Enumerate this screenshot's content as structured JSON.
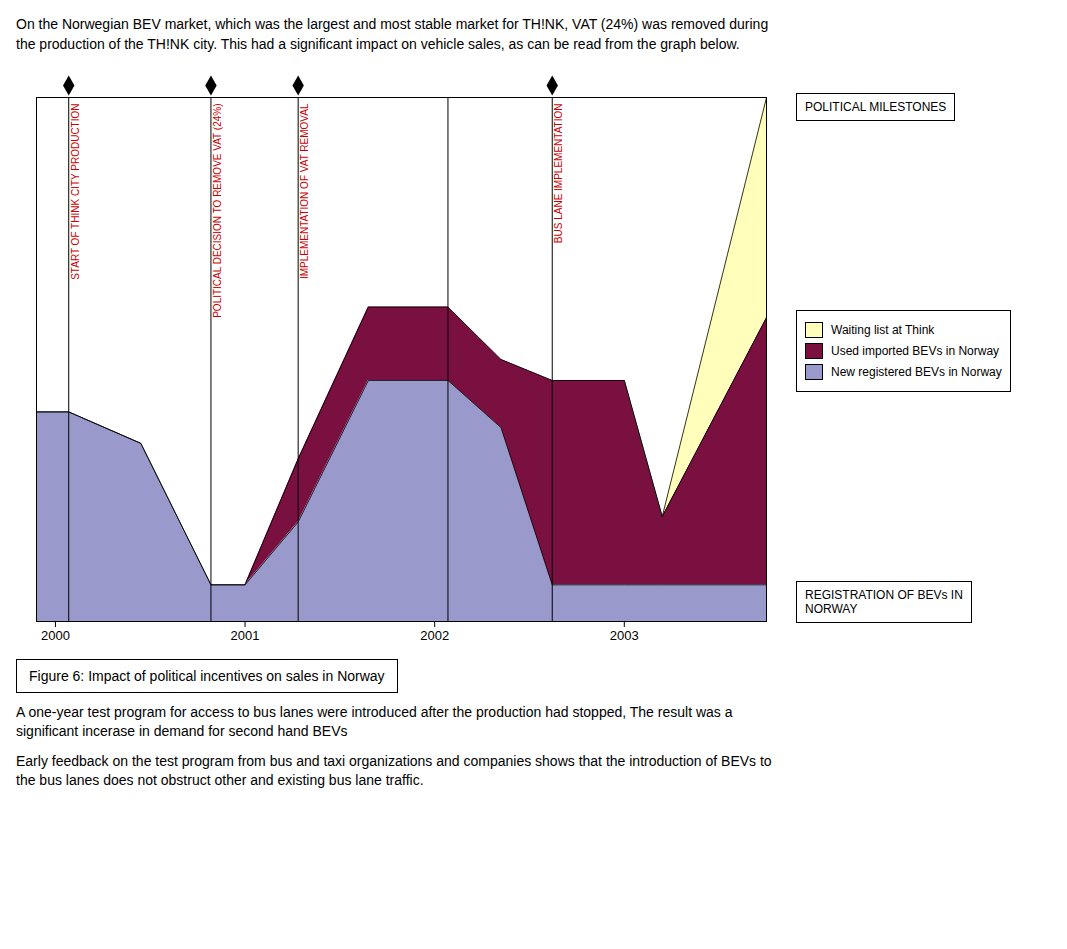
{
  "chart_data": {
    "type": "area",
    "title": "On the Norwegian BEV market, which was the largest and most stable market for TH!NK, VAT (24%) was removed during\nthe production of the TH!NK city. This had a significant impact on vehicle sales, as can be read from the graph below.",
    "x": [
      1999.9,
      2000.07,
      2000.45,
      2000.82,
      2001.0,
      2001.28,
      2001.65,
      2002.07,
      2002.35,
      2002.62,
      2003.0,
      2003.2,
      2003.75
    ],
    "series": [
      {
        "name": "New registered BEVs in Norway",
        "color": "#9999cc",
        "values": [
          0.4,
          0.4,
          0.34,
          0.07,
          0.07,
          0.19,
          0.46,
          0.46,
          0.37,
          0.07,
          0.07,
          0.07,
          0.07
        ]
      },
      {
        "name": "Used imported BEVs in Norway",
        "color": "#7a1040",
        "values": [
          0,
          0,
          0,
          0,
          0,
          0.12,
          0.14,
          0.14,
          0.13,
          0.39,
          0.39,
          0.13,
          0.51
        ]
      },
      {
        "name": "Waiting list at Think",
        "color": "#ffffbb",
        "values": [
          null,
          null,
          null,
          null,
          null,
          null,
          null,
          null,
          null,
          null,
          0,
          0,
          0.42
        ]
      }
    ],
    "stacked": true,
    "xlim": [
      1999.9,
      2003.75
    ],
    "xticks": [
      2000,
      2001,
      2002,
      2003
    ],
    "ylim": [
      0,
      1
    ],
    "yticks": [],
    "tick_labels": "x",
    "grid": false,
    "legend": "right",
    "milestones": [
      {
        "x": 2000.07,
        "label": "START OF THINK CITY PRODUCTION",
        "color": "#cc0000",
        "marker": "diamond"
      },
      {
        "x": 2000.82,
        "label": "POLITICAL DECISION TO REMOVE VAT (24%)",
        "color": "#cc0000",
        "marker": "diamond"
      },
      {
        "x": 2001.28,
        "label": "IMPLEMENTATION OF VAT REMOVAL",
        "color": "#cc0000",
        "marker": "diamond"
      },
      {
        "x": 2002.07
      },
      {
        "x": 2002.62,
        "label": "BUS LANE IMPLEMENTATION",
        "color": "#cc0000",
        "marker": "diamond"
      }
    ],
    "annotations": [
      "POLITICAL MILESTONES",
      "REGISTRATION OF BEVs IN\nNORWAY"
    ],
    "caption": "Figure 6: Impact of political incentives on sales in Norway",
    "footnotes": [
      "A one-year test program for access to bus lanes were introduced after the production had stopped, The result was a\nsignificant incerase in demand for second hand BEVs",
      "Early feedback on the test program from bus and taxi organizations and companies shows that the introduction of BEVs to\nthe bus lanes does not obstruct other and existing bus lane traffic."
    ]
  }
}
